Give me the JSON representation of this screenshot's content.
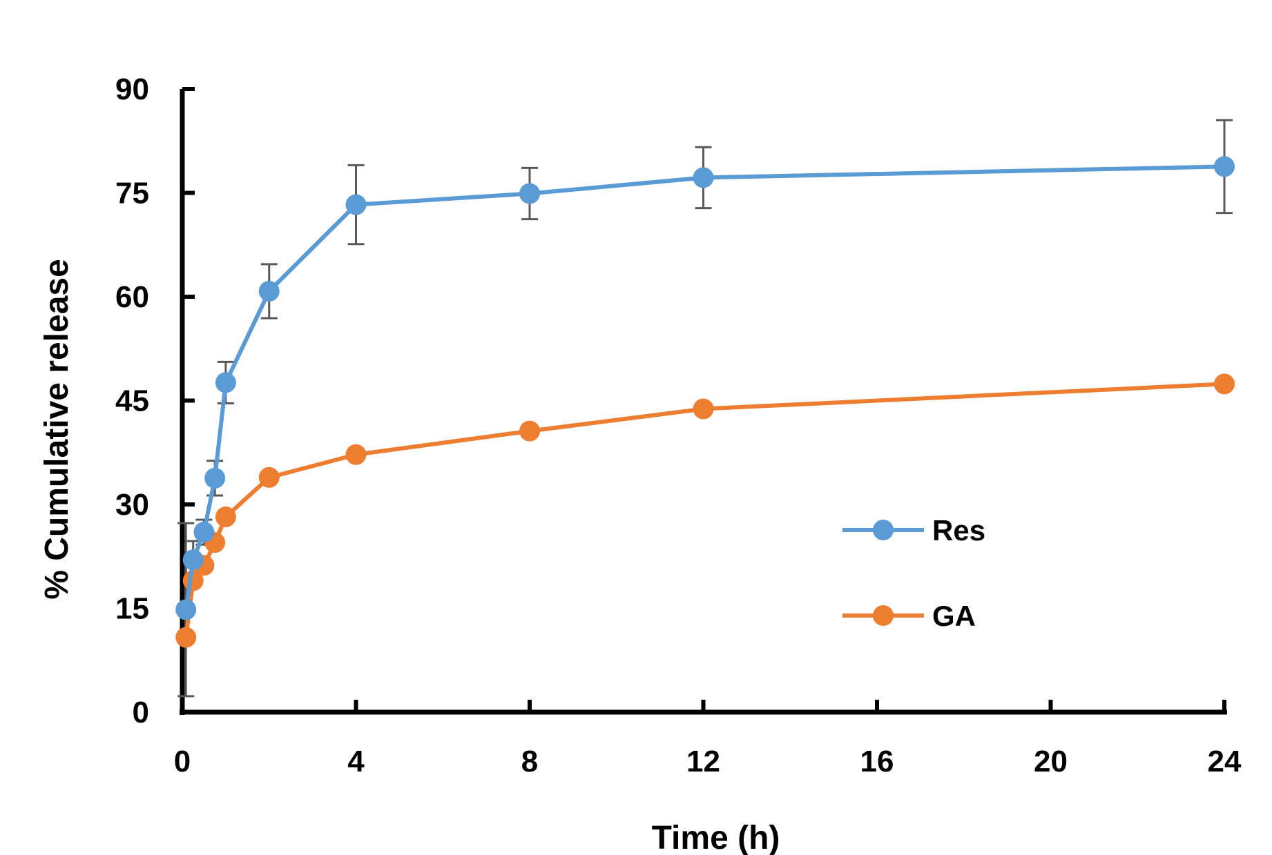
{
  "chart_data": {
    "type": "line",
    "title": "",
    "xlabel": "Time (h)",
    "ylabel": "% Cumulative release",
    "xlim": [
      0,
      24
    ],
    "ylim": [
      0,
      90
    ],
    "xticks": [
      0,
      4,
      8,
      12,
      16,
      20,
      24
    ],
    "yticks": [
      0,
      15,
      30,
      45,
      60,
      75,
      90
    ],
    "grid": false,
    "legend_position": "center-right",
    "series": [
      {
        "name": "Res",
        "color": "#5B9BD5",
        "x": [
          0.083,
          0.25,
          0.5,
          0.75,
          1,
          2,
          4,
          8,
          12,
          24
        ],
        "values": [
          14.8,
          22.0,
          26.0,
          33.8,
          47.6,
          60.8,
          73.3,
          74.9,
          77.2,
          78.8
        ],
        "error": [
          12.5,
          2.7,
          1.8,
          2.5,
          3.0,
          3.9,
          5.7,
          3.7,
          4.4,
          6.7
        ]
      },
      {
        "name": "GA",
        "color": "#ED7D31",
        "x": [
          0.083,
          0.25,
          0.5,
          0.75,
          1,
          2,
          4,
          8,
          12,
          24
        ],
        "values": [
          10.8,
          19.0,
          21.2,
          24.5,
          28.2,
          33.9,
          37.2,
          40.6,
          43.8,
          47.4
        ]
      }
    ]
  }
}
